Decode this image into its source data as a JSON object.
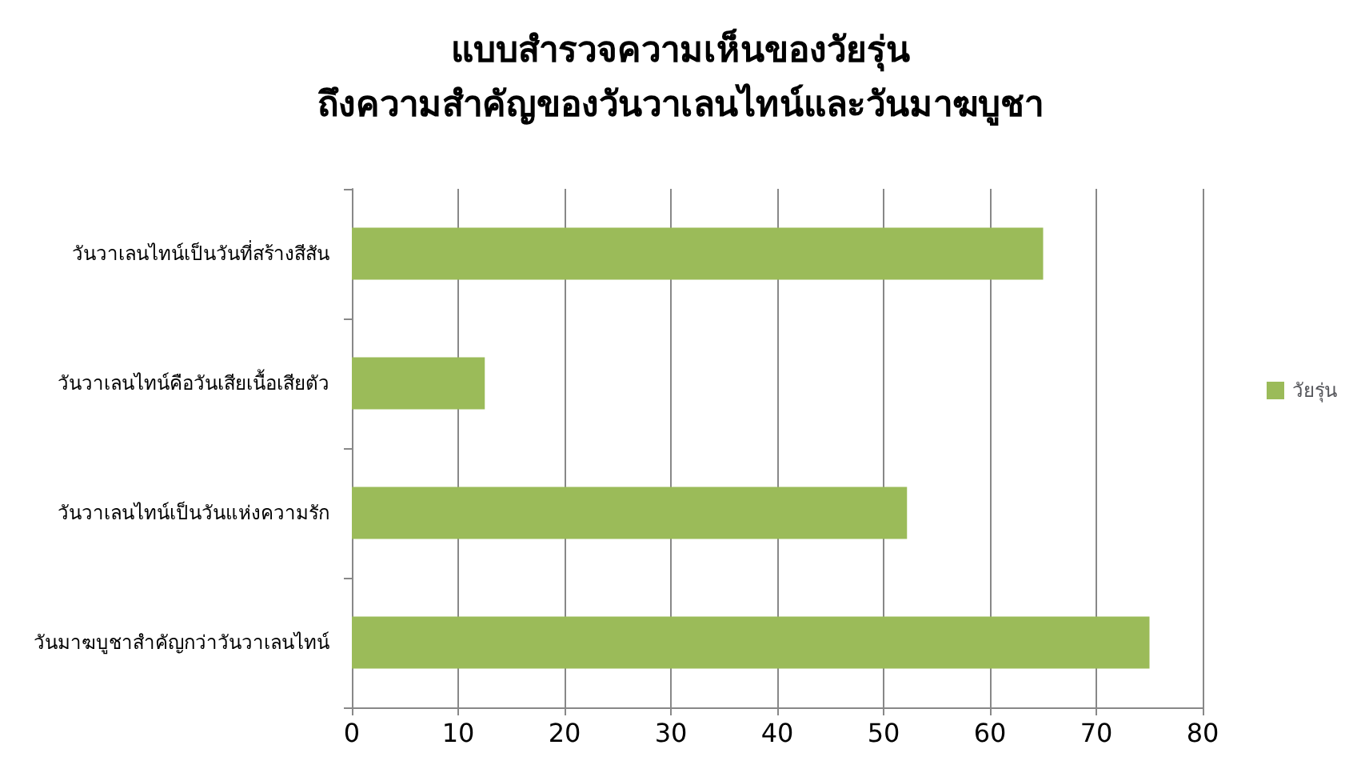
{
  "chart_data": {
    "type": "bar",
    "orientation": "horizontal",
    "title": "แบบสำรวจความเห็นของวัยรุ่น\nถึงความสำคัญของวันวาเลนไทน์และวันมาฆบูชา",
    "categories": [
      "วันวาเลนไทน์เป็นวันที่สร้างสีสัน",
      "วันวาเลนไทน์คือวันเสียเนื้อเสียตัว",
      "วันวาเลนไทน์เป็นวันแห่งความรัก",
      "วันมาฆบูชาสำคัญกว่าวันวาเลนไทน์"
    ],
    "series": [
      {
        "name": "วัยรุ่น",
        "color": "#9bbb59",
        "values": [
          65,
          12.5,
          52.2,
          75
        ]
      }
    ],
    "xlim": [
      0,
      80
    ],
    "xticks": [
      0,
      10,
      20,
      30,
      40,
      50,
      60,
      70,
      80
    ],
    "grid": "x",
    "legend": "right"
  }
}
